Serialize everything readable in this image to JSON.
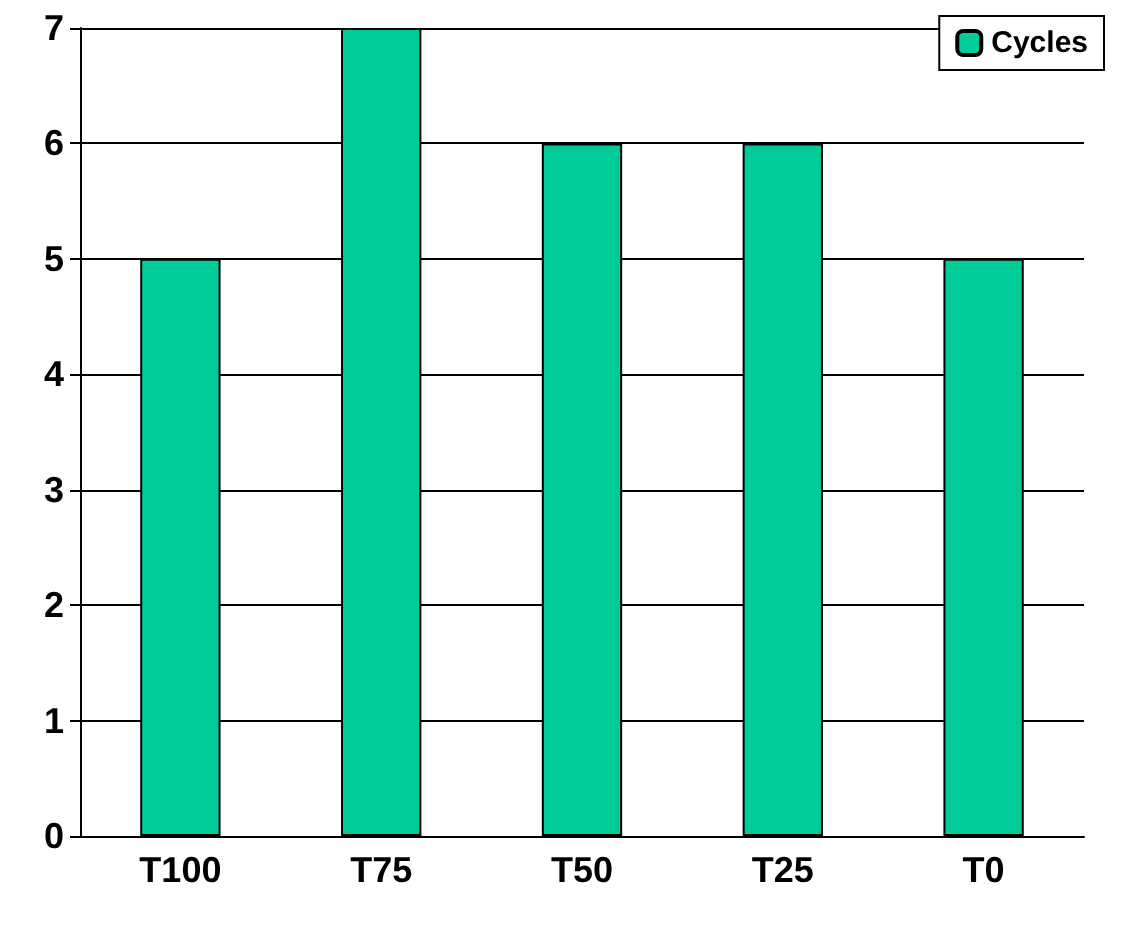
{
  "chart_data": {
    "type": "bar",
    "categories": [
      "T100",
      "T75",
      "T50",
      "T25",
      "T0"
    ],
    "series": [
      {
        "name": "Cycles",
        "color": "#00cc99",
        "values": [
          5,
          7,
          6,
          6,
          5
        ]
      }
    ],
    "ylim": [
      0,
      7
    ],
    "yticks": [
      0,
      1,
      2,
      3,
      4,
      5,
      6,
      7
    ],
    "grid": "y",
    "legend": "top right"
  }
}
